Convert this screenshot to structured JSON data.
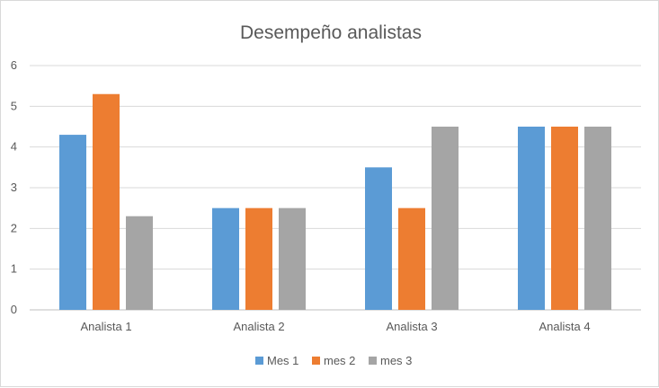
{
  "chart_data": {
    "type": "bar",
    "title": "Desempeño analistas",
    "xlabel": "",
    "ylabel": "",
    "ylim": [
      0,
      6
    ],
    "yticks": [
      0,
      1,
      2,
      3,
      4,
      5,
      6
    ],
    "grid": true,
    "legend_position": "bottom",
    "categories": [
      "Analista 1",
      "Analista 2",
      "Analista 3",
      "Analista 4"
    ],
    "series": [
      {
        "name": "Mes 1",
        "color": "#5b9bd5",
        "values": [
          4.3,
          2.5,
          3.5,
          4.5
        ]
      },
      {
        "name": "mes 2",
        "color": "#ed7d31",
        "values": [
          5.3,
          2.5,
          2.5,
          4.5
        ]
      },
      {
        "name": "mes 3",
        "color": "#a5a5a5",
        "values": [
          2.3,
          2.5,
          4.5,
          4.5
        ]
      }
    ]
  }
}
